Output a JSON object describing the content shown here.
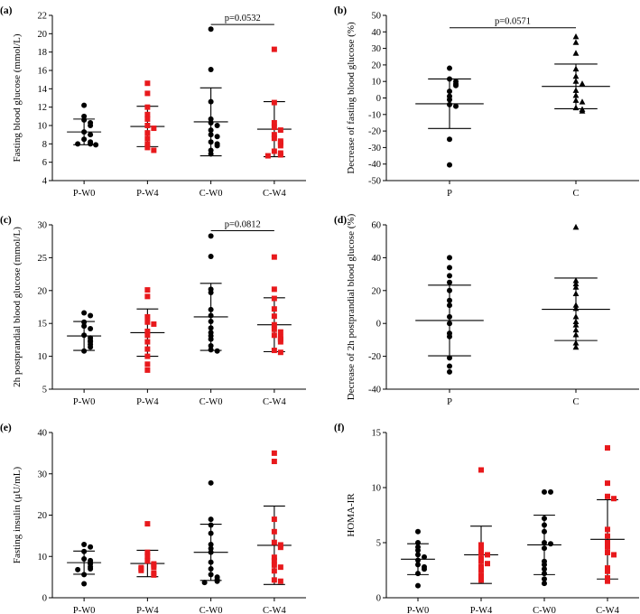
{
  "chart_data": [
    {
      "id": "a",
      "panel_label": "(a)",
      "type": "scatter",
      "ylabel": "Fasting blood glucose (mmol/L)",
      "ylim": [
        4,
        22
      ],
      "yticks": [
        4,
        6,
        8,
        10,
        12,
        14,
        16,
        18,
        20,
        22
      ],
      "categories": [
        "P-W0",
        "P-W4",
        "C-W0",
        "C-W4"
      ],
      "groups": [
        {
          "name": "P-W0",
          "color": "#000000",
          "marker": "circle",
          "mean": 9.3,
          "sd": 1.4,
          "points": [
            12.2,
            11.0,
            10.6,
            10.3,
            10.0,
            9.3,
            9.0,
            8.5,
            8.2,
            8.0,
            8.0,
            7.9
          ]
        },
        {
          "name": "P-W4",
          "color": "#e8191c",
          "marker": "square",
          "mean": 9.9,
          "sd": 2.2,
          "points": [
            14.6,
            13.5,
            12.0,
            11.2,
            10.7,
            10.0,
            9.7,
            9.2,
            8.6,
            8.0,
            7.6,
            7.3
          ]
        },
        {
          "name": "C-W0",
          "color": "#000000",
          "marker": "circle",
          "mean": 10.4,
          "sd": 3.7,
          "points": [
            20.5,
            16.1,
            12.6,
            10.7,
            10.3,
            10.0,
            9.5,
            9.0,
            8.8,
            8.2,
            8.0,
            7.8,
            7.3,
            6.9
          ]
        },
        {
          "name": "C-W4",
          "color": "#e8191c",
          "marker": "square",
          "mean": 9.6,
          "sd": 3.0,
          "points": [
            18.3,
            12.5,
            10.3,
            9.8,
            9.5,
            9.0,
            8.6,
            8.3,
            8.1,
            7.8,
            7.2,
            7.0,
            6.8,
            6.7
          ]
        }
      ],
      "comparisons": [
        {
          "from": 2,
          "to": 3,
          "text": "p=0.0532",
          "y": 21.0
        }
      ]
    },
    {
      "id": "b",
      "panel_label": "(b)",
      "type": "scatter",
      "ylabel": "Decrease of fasting blood glucose (%)",
      "ylim": [
        -50,
        50
      ],
      "yticks": [
        -50,
        -40,
        -30,
        -20,
        -10,
        0,
        10,
        20,
        30,
        40,
        50
      ],
      "categories": [
        "P",
        "C"
      ],
      "groups": [
        {
          "name": "P",
          "color": "#000000",
          "marker": "circle",
          "mean": -3.5,
          "sd": 15,
          "points": [
            18.0,
            11.5,
            10.0,
            8.5,
            7.5,
            4.0,
            1.0,
            -1.0,
            -4.0,
            -5.0,
            -25.0,
            -40.5
          ]
        },
        {
          "name": "C",
          "color": "#000000",
          "marker": "triangle",
          "mean": 7.0,
          "sd": 13.5,
          "points": [
            37.0,
            33.5,
            27.0,
            17.5,
            13.0,
            10.0,
            8.5,
            4.5,
            1.5,
            -1.5,
            -2.5,
            -6.0,
            -7.0,
            -8.0
          ]
        }
      ],
      "comparisons": [
        {
          "from": 0,
          "to": 1,
          "text": "p=0.0571",
          "y": 42.5
        }
      ]
    },
    {
      "id": "c",
      "panel_label": "(c)",
      "type": "scatter",
      "ylabel": "2h postprandial blood glucose (mmol/L)",
      "ylim": [
        5,
        30
      ],
      "yticks": [
        5,
        10,
        15,
        20,
        25,
        30
      ],
      "categories": [
        "P-W0",
        "P-W4",
        "C-W0",
        "C-W4"
      ],
      "groups": [
        {
          "name": "P-W0",
          "color": "#000000",
          "marker": "circle",
          "mean": 13.1,
          "sd": 2.2,
          "points": [
            16.6,
            16.2,
            15.2,
            14.6,
            14.2,
            13.2,
            12.8,
            12.4,
            12.2,
            11.8,
            11.4,
            10.8
          ]
        },
        {
          "name": "P-W4",
          "color": "#e8191c",
          "marker": "square",
          "mean": 13.6,
          "sd": 3.6,
          "points": [
            20.1,
            19.1,
            16.0,
            15.2,
            14.9,
            13.8,
            13.2,
            12.2,
            11.1,
            10.0,
            8.8,
            7.9
          ]
        },
        {
          "name": "C-W0",
          "color": "#000000",
          "marker": "circle",
          "mean": 16.0,
          "sd": 5.1,
          "points": [
            28.3,
            25.2,
            20.2,
            19.7,
            17.1,
            16.2,
            15.3,
            14.3,
            13.6,
            13.1,
            12.6,
            11.6,
            11.0,
            10.8
          ]
        },
        {
          "name": "C-W4",
          "color": "#e8191c",
          "marker": "square",
          "mean": 14.8,
          "sd": 4.1,
          "points": [
            25.1,
            20.2,
            18.8,
            17.2,
            16.1,
            14.8,
            14.1,
            13.7,
            13.2,
            12.9,
            12.6,
            12.2,
            10.9,
            10.6
          ]
        }
      ],
      "comparisons": [
        {
          "from": 2,
          "to": 3,
          "text": "p=0.0812",
          "y": 29.1
        }
      ]
    },
    {
      "id": "d",
      "panel_label": "(d)",
      "type": "scatter",
      "ylabel": "Decrease of 2h postprandial blood glucose (%)",
      "ylim": [
        -40,
        60
      ],
      "yticks": [
        -40,
        -20,
        0,
        20,
        40,
        60
      ],
      "categories": [
        "P",
        "C"
      ],
      "groups": [
        {
          "name": "P",
          "color": "#000000",
          "marker": "circle",
          "mean": 1.8,
          "sd": 21.5,
          "points": [
            40.0,
            34.0,
            29.0,
            25.0,
            20.0,
            14.0,
            11.0,
            4.0,
            0.0,
            -6.0,
            -8.0,
            -21.0,
            -26.0,
            -29.5
          ]
        },
        {
          "name": "C",
          "color": "#000000",
          "marker": "triangle",
          "mean": 8.6,
          "sd": 19,
          "points": [
            58.5,
            26.0,
            24.0,
            22.0,
            18.0,
            11.0,
            9.0,
            4.0,
            1.0,
            -1.0,
            -4.0,
            -7.0,
            -12.0,
            -14.5
          ]
        }
      ],
      "comparisons": []
    },
    {
      "id": "e",
      "panel_label": "(e)",
      "type": "scatter",
      "ylabel": "Fasting insulin (μU/mL)",
      "ylim": [
        0,
        40
      ],
      "yticks": [
        0,
        10,
        20,
        30,
        40
      ],
      "categories": [
        "P-W0",
        "P-W4",
        "C-W0",
        "C-W4"
      ],
      "groups": [
        {
          "name": "P-W0",
          "color": "#000000",
          "marker": "circle",
          "mean": 8.5,
          "sd": 2.8,
          "points": [
            12.9,
            12.3,
            11.2,
            9.4,
            9.0,
            8.5,
            8.2,
            7.5,
            7.0,
            6.8,
            5.6,
            3.4
          ]
        },
        {
          "name": "P-W4",
          "color": "#e8191c",
          "marker": "square",
          "mean": 8.3,
          "sd": 3.2,
          "points": [
            17.9,
            11.0,
            10.0,
            8.9,
            8.2,
            7.9,
            7.4,
            7.3,
            7.0,
            6.6,
            6.0,
            5.5
          ]
        },
        {
          "name": "C-W0",
          "color": "#000000",
          "marker": "circle",
          "mean": 11.0,
          "sd": 6.8,
          "points": [
            27.8,
            19.0,
            17.6,
            15.6,
            12.9,
            11.9,
            11.0,
            8.6,
            7.0,
            5.6,
            5.0,
            4.4,
            4.0,
            3.7
          ]
        },
        {
          "name": "C-W4",
          "color": "#e8191c",
          "marker": "square",
          "mean": 12.7,
          "sd": 9.5,
          "points": [
            35.0,
            33.0,
            19.0,
            16.0,
            13.4,
            12.8,
            12.2,
            9.8,
            9.0,
            7.9,
            7.4,
            6.5,
            4.3,
            4.0
          ]
        }
      ],
      "comparisons": []
    },
    {
      "id": "f",
      "panel_label": "(f)",
      "type": "scatter",
      "ylabel": "HOMA-IR",
      "ylim": [
        0,
        15
      ],
      "yticks": [
        0,
        5,
        10,
        15
      ],
      "categories": [
        "P-W0",
        "P-W4",
        "C-W0",
        "C-W4"
      ],
      "groups": [
        {
          "name": "P-W0",
          "color": "#000000",
          "marker": "circle",
          "mean": 3.5,
          "sd": 1.4,
          "points": [
            6.0,
            5.0,
            4.6,
            4.3,
            3.9,
            3.7,
            3.4,
            3.0,
            2.8,
            2.6,
            2.2,
            1.1
          ]
        },
        {
          "name": "P-W4",
          "color": "#e8191c",
          "marker": "square",
          "mean": 3.9,
          "sd": 2.6,
          "points": [
            11.6,
            4.8,
            4.5,
            4.1,
            3.9,
            3.6,
            3.3,
            3.1,
            2.8,
            2.5,
            2.0,
            1.6
          ]
        },
        {
          "name": "C-W0",
          "color": "#000000",
          "marker": "circle",
          "mean": 4.8,
          "sd": 2.7,
          "points": [
            9.6,
            9.6,
            7.2,
            6.6,
            6.0,
            5.0,
            4.9,
            4.5,
            3.3,
            3.0,
            2.6,
            2.2,
            1.7,
            1.3
          ]
        },
        {
          "name": "C-W4",
          "color": "#e8191c",
          "marker": "square",
          "mean": 5.3,
          "sd": 3.6,
          "points": [
            13.6,
            10.4,
            9.2,
            9.0,
            6.2,
            5.6,
            5.0,
            4.6,
            4.1,
            3.9,
            2.7,
            2.4,
            1.8,
            1.5
          ]
        }
      ],
      "comparisons": []
    }
  ]
}
